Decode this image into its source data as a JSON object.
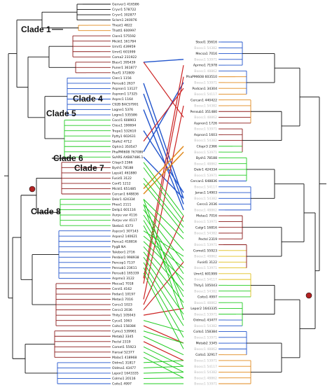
{
  "colors": {
    "black": "#111111",
    "green": "#22cc22",
    "blue": "#2255cc",
    "red": "#cc2222",
    "darkred": "#8b1a1a",
    "orange": "#e08a1e",
    "yellow": "#e0c020",
    "root_marker": "#b22222"
  },
  "clades": [
    {
      "id": "clade1",
      "label": "Clade 1"
    },
    {
      "id": "clade4",
      "label": "Clade 4"
    },
    {
      "id": "clade5",
      "label": "Clade 5"
    },
    {
      "id": "clade6",
      "label": "Clade 6"
    },
    {
      "id": "clade7",
      "label": "Clade 7"
    },
    {
      "id": "clade8",
      "label": "Clade 8"
    }
  ],
  "left_tips": [
    "Genver1 416586",
    "Cryvr1 578722",
    "Cryvr1 302877",
    "Sclsm1 240076",
    "Thest1 4822",
    "Thatt1 600997",
    "Clore1 575592",
    "Mickt1 161784",
    "Umrt1 439959",
    "Umrt1 601999",
    "Coma2 231922",
    "Blasr1 395439",
    "Puner1 361877",
    "Rucf1 372809",
    "Clerc1 1156",
    "Pensub1 2637",
    "Aspnon1 13127",
    "Aspnon1 17325",
    "Aspnc1 1164",
    "C92B BACS7991",
    "Logne1 5376",
    "Logne1 535586",
    "Coccl1 608903",
    "Closc1 190694",
    "Trepe1 532610",
    "Pytty1 602631",
    "Stafo2 4712",
    "Ophin1 350547",
    "PhaPMI608 767086",
    "SsARS AXB87486.1",
    "Cilapr3 2366",
    "Bysh1 78188",
    "Lepsk1 461880",
    "Fusid1 3122",
    "Conf1 1212",
    "Mickt1 651485",
    "Cercan1 648836",
    "Dekr1 424334",
    "Pheo1 2111",
    "Dellp1 601116",
    "Aurpu var 4116",
    "Aurpu var 4117",
    "Skeba1 4373",
    "Aspcor1 307143",
    "Aspon2 140621",
    "Penca1 418816",
    "PygB NA",
    "Talebor1 2716",
    "Penbiol1 998938",
    "Pencop1 7137",
    "Pensub1 23611",
    "Pensub1 165339",
    "Aspmo1 3122",
    "Mecsa1 7018",
    "Cerst1 4162",
    "Podan1 10197",
    "Metas1 7016",
    "Cercs1 1023",
    "Cercs1 2036",
    "Thity1 105043",
    "Cycsi1 1063",
    "Coito1 158384",
    "Cyms1 539961",
    "Metab2 3345",
    "Pectsl 2319",
    "Comet1 55923",
    "Hansal 52377",
    "Malac1 418968",
    "Oidrre1 31817",
    "Oidma1 43477",
    "Lepor2 1643335",
    "Colmo1 20116",
    "Coito1 4997"
  ],
  "right_tips_dark": [
    "Steel1 35616",
    "Mecsa1 7016",
    "Aprmo1 71978",
    "PhaPMI608 603510",
    "Podcan1 34304",
    "Cercan1 440422",
    "Pensub1 351480",
    "Aspnon1 1726",
    "Aspnon1 1603",
    "Cilapr3 2366",
    "Bysh1 78188",
    "Dekr1 424334",
    "Cercan1 648836",
    "Janac1 14903",
    "Cercs1 2036",
    "Metas1 7016",
    "Calgr1 16816",
    "Pectsl 2319",
    "Comet1 55923",
    "Fusid1 3122",
    "Umrt1 601999",
    "Thity1 105043",
    "Coito1 4997",
    "Lepor2 1643335",
    "Oidma1 43477",
    "Coito1 158384",
    "Metab2 3345",
    "Coito1 32917"
  ],
  "right_tips_faint": [
    "Boosc1 54382",
    "Boosc1 53971",
    "Boosc1 48862",
    "Boosc1 53971",
    "Boosc1 54117",
    "Boosc1 54382",
    "Boosc1 48862",
    "Boosc1 53971"
  ]
}
